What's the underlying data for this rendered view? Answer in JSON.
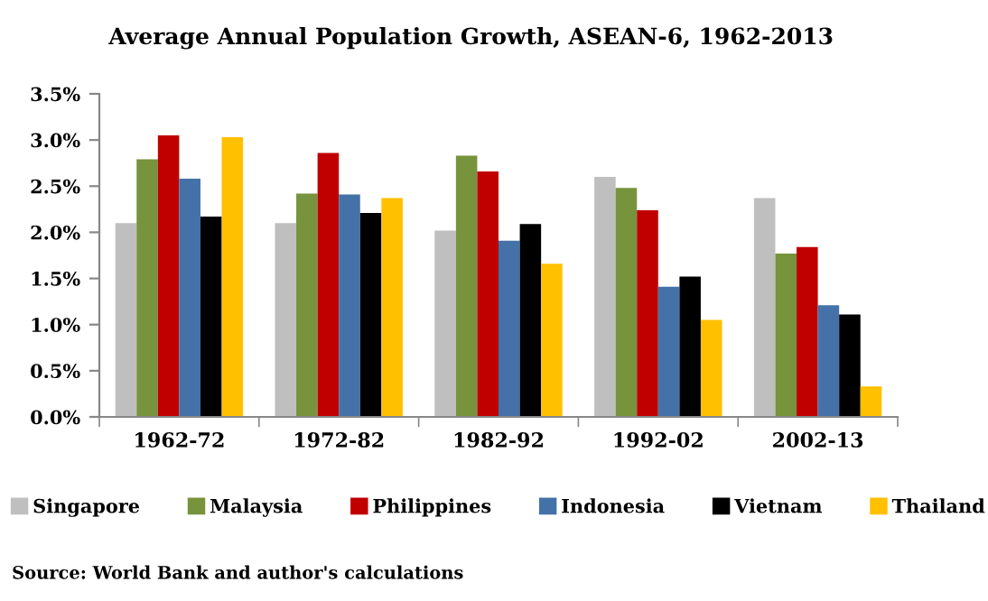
{
  "chart_data": {
    "type": "bar",
    "title": "Average Annual Population Growth, ASEAN-6, 1962-2013",
    "categories": [
      "1962-72",
      "1972-82",
      "1982-92",
      "1992-02",
      "2002-13"
    ],
    "series": [
      {
        "name": "Singapore",
        "color": "#bfbfbf",
        "values": [
          2.1,
          2.1,
          2.02,
          2.6,
          2.37
        ]
      },
      {
        "name": "Malaysia",
        "color": "#77933c",
        "values": [
          2.79,
          2.42,
          2.83,
          2.48,
          1.77
        ]
      },
      {
        "name": "Philippines",
        "color": "#c00000",
        "values": [
          3.05,
          2.86,
          2.66,
          2.24,
          1.84
        ]
      },
      {
        "name": "Indonesia",
        "color": "#4472a8",
        "values": [
          2.58,
          2.41,
          1.91,
          1.41,
          1.21
        ]
      },
      {
        "name": "Vietnam",
        "color": "#000000",
        "values": [
          2.17,
          2.21,
          2.09,
          1.52,
          1.11
        ]
      },
      {
        "name": "Thailand",
        "color": "#ffc000",
        "values": [
          3.03,
          2.37,
          1.66,
          1.05,
          0.33
        ]
      }
    ],
    "ylim": [
      0,
      3.5
    ],
    "yticks": [
      {
        "value": 0,
        "label": "0.0%"
      },
      {
        "value": 0.5,
        "label": "0.5%"
      },
      {
        "value": 1,
        "label": "1.0%"
      },
      {
        "value": 1.5,
        "label": "1.5%"
      },
      {
        "value": 2,
        "label": "2.0%"
      },
      {
        "value": 2.5,
        "label": "2.5%"
      },
      {
        "value": 3,
        "label": "3.0%"
      },
      {
        "value": 3.5,
        "label": "3.5%"
      }
    ],
    "grid": false,
    "legend": "bottom",
    "annotations": [
      "Source: World Bank and author's calculations"
    ]
  }
}
